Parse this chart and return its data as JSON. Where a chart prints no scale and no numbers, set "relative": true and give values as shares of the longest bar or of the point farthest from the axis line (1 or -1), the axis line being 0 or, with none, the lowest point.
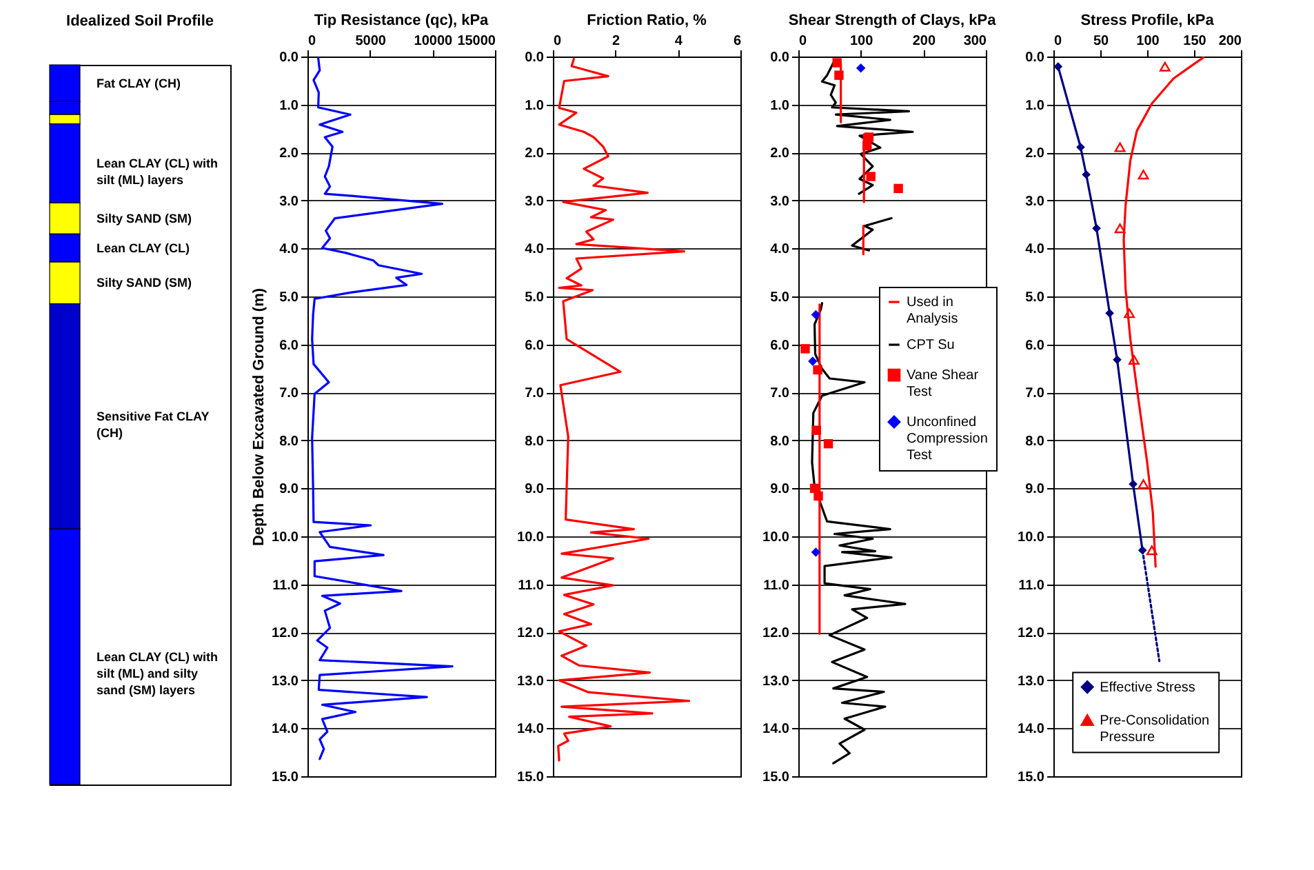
{
  "chart_data": [
    {
      "type": "bar",
      "title": "Idealized Soil Profile",
      "stacked": true,
      "relative": true,
      "categories": [
        null
      ],
      "series": [
        {
          "name": "Fat CLAY (CH)",
          "color": "#0000ff",
          "values": [
            -0.051
          ]
        },
        {
          "color": "#0000ff",
          "values": [
            -0.018
          ]
        },
        {
          "color": "#ffff00",
          "values": [
            -0.013
          ]
        },
        {
          "name": "Lean CLAY (CL) with silt (ML) layers",
          "color": "#0000ff",
          "values": [
            -0.11
          ]
        },
        {
          "name": "Silty SAND (SM)",
          "color": "#ffff00",
          "values": [
            -0.043
          ]
        },
        {
          "name": "Lean CLAY (CL)",
          "color": "#0000ff",
          "values": [
            -0.039
          ]
        },
        {
          "name": "Silty SAND (SM)",
          "color": "#ffff00",
          "values": [
            -0.058
          ]
        },
        {
          "name": "Sensitive Fat CLAY (CH)",
          "color": "#0000cc",
          "values": [
            -0.313
          ]
        },
        {
          "name": "Lean CLAY (CL) with silt (ML) and silty sand (SM) layers",
          "color": "#0000ff",
          "values": [
            -0.355
          ]
        }
      ]
    },
    {
      "type": "line",
      "title": "Tip Resistance (qc), kPa",
      "ylabel": "Depth Below Excavated Ground (m)",
      "xlim": [
        0,
        15000
      ],
      "xticks": [
        0,
        5000,
        10000,
        15000
      ],
      "ylim": [
        15,
        0
      ],
      "yticks": [
        {
          "value": 0,
          "label": "0.0"
        },
        {
          "value": 1,
          "label": "1.0"
        },
        {
          "value": 2,
          "label": "2.0"
        },
        {
          "value": 3,
          "label": "3.0"
        },
        {
          "value": 4,
          "label": "4.0"
        },
        {
          "value": 5,
          "label": "5.0"
        },
        {
          "value": 6,
          "label": "6.0"
        },
        {
          "value": 7,
          "label": "7.0"
        },
        {
          "value": 8,
          "label": "8.0"
        },
        {
          "value": 9,
          "label": "9.0"
        },
        {
          "value": 10,
          "label": "10.0"
        },
        {
          "value": 11,
          "label": "11.0"
        },
        {
          "value": 12,
          "label": "12.0"
        },
        {
          "value": 13,
          "label": "13.0"
        },
        {
          "value": 14,
          "label": "14.0"
        },
        {
          "value": 15,
          "label": "15.0"
        }
      ],
      "grid": "y",
      "series": [
        {
          "color": "#0000ff",
          "x": [
            860,
            980,
            490,
            900,
            860,
            3430,
            980,
            2800,
            1390,
            2000,
            1710,
            1390,
            1800,
            1390,
            3840,
            10780,
            5060,
            2200,
            1470,
            1800,
            1180,
            3020,
            5270,
            5680,
            9140,
            7100,
            7920,
            3430,
            570,
            450,
            370,
            490,
            1710,
            570,
            370,
            450,
            490,
            5060,
            980,
            1800,
            6080,
            570,
            570,
            7510,
            1180,
            2610,
            1390,
            1800,
            780,
            1590,
            980,
            11590,
            980,
            900,
            9550,
            1180,
            3840,
            1180,
            1590,
            980,
            1310,
            980
          ],
          "values": [
            0.03,
            0.29,
            0.49,
            0.75,
            1.06,
            1.21,
            1.42,
            1.57,
            1.68,
            1.88,
            2.29,
            2.5,
            2.71,
            2.86,
            2.91,
            3.07,
            3.27,
            3.37,
            3.63,
            3.79,
            3.99,
            4.09,
            4.25,
            4.35,
            4.53,
            4.61,
            4.76,
            4.92,
            5.05,
            5.38,
            5.89,
            6.41,
            6.79,
            7.03,
            7.95,
            8.98,
            9.7,
            9.77,
            9.91,
            10.22,
            10.39,
            10.52,
            10.83,
            11.14,
            11.24,
            11.4,
            11.55,
            11.91,
            12.17,
            12.32,
            12.58,
            12.71,
            12.89,
            13.2,
            13.35,
            13.51,
            13.66,
            13.81,
            14.07,
            14.23,
            14.43,
            14.64
          ]
        }
      ]
    },
    {
      "type": "line",
      "title": "Friction Ratio, %",
      "xlim": [
        0,
        6
      ],
      "xticks": [
        0,
        2,
        4,
        6
      ],
      "ylim": [
        15,
        0
      ],
      "yticks": [
        {
          "value": 0,
          "label": "0.0"
        },
        {
          "value": 1,
          "label": "1.0"
        },
        {
          "value": 2,
          "label": "2.0"
        },
        {
          "value": 3,
          "label": "3.0"
        },
        {
          "value": 4,
          "label": "4.0"
        },
        {
          "value": 5,
          "label": "5.0"
        },
        {
          "value": 6,
          "label": "6.0"
        },
        {
          "value": 7,
          "label": "7.0"
        },
        {
          "value": 8,
          "label": "8.0"
        },
        {
          "value": 9,
          "label": "9.0"
        },
        {
          "value": 10,
          "label": "10.0"
        },
        {
          "value": 11,
          "label": "11.0"
        },
        {
          "value": 12,
          "label": "12.0"
        },
        {
          "value": 13,
          "label": "13.0"
        },
        {
          "value": 14,
          "label": "14.0"
        },
        {
          "value": 15,
          "label": "15.0"
        }
      ],
      "grid": "y",
      "series": [
        {
          "color": "#ff0000",
          "x": [
            0.67,
            0.6,
            1.77,
            0.36,
            0.2,
            0.75,
            0.2,
            0.99,
            1.3,
            1.61,
            1.77,
            0.99,
            1.61,
            1.3,
            3.03,
            0.33,
            1.69,
            1.22,
            1.93,
            1.07,
            1.3,
            0.75,
            4.2,
            0.75,
            0.91,
            0.44,
            0.91,
            0.2,
            1.27,
            0.33,
            0.44,
            2.16,
            0.24,
            0.49,
            0.41,
            2.59,
            1.22,
            3.06,
            0.28,
            1.93,
            0.28,
            1.93,
            0.36,
            1.3,
            0.36,
            1.22,
            0.2,
            1.07,
            0.28,
            0.83,
            3.1,
            0.2,
            1.14,
            4.36,
            0.28,
            3.18,
            0.52,
            1.85,
            0.36,
            0.49,
            0.17,
            0.2
          ],
          "values": [
            0.05,
            0.2,
            0.41,
            0.51,
            1.07,
            1.17,
            1.42,
            1.57,
            1.68,
            1.88,
            2.08,
            2.34,
            2.54,
            2.69,
            2.84,
            3.03,
            3.2,
            3.35,
            3.4,
            3.65,
            3.81,
            3.91,
            4.06,
            4.21,
            4.42,
            4.62,
            4.77,
            4.82,
            4.87,
            5.1,
            5.89,
            6.57,
            6.85,
            7.92,
            9.65,
            9.85,
            9.92,
            10.05,
            10.36,
            10.46,
            10.86,
            11.02,
            11.22,
            11.42,
            11.62,
            11.83,
            11.98,
            12.28,
            12.49,
            12.69,
            12.84,
            13.0,
            13.25,
            13.43,
            13.55,
            13.69,
            13.76,
            13.96,
            14.11,
            14.26,
            14.37,
            14.67
          ]
        }
      ]
    },
    {
      "type": "line",
      "title": "Shear Strength of Clays, kPa",
      "xlim": [
        0,
        300
      ],
      "xticks": [
        0,
        100,
        200,
        300
      ],
      "ylim": [
        15,
        0
      ],
      "yticks": [
        {
          "value": 0,
          "label": "0.0"
        },
        {
          "value": 1,
          "label": "1.0"
        },
        {
          "value": 2,
          "label": "2.0"
        },
        {
          "value": 3,
          "label": "3.0"
        },
        {
          "value": 4,
          "label": "4.0"
        },
        {
          "value": 5,
          "label": "5.0"
        },
        {
          "value": 6,
          "label": "6.0"
        },
        {
          "value": 7,
          "label": "7.0"
        },
        {
          "value": 8,
          "label": "8.0"
        },
        {
          "value": 9,
          "label": "9.0"
        },
        {
          "value": 10,
          "label": "10.0"
        },
        {
          "value": 11,
          "label": "11.0"
        },
        {
          "value": 12,
          "label": "12.0"
        },
        {
          "value": 13,
          "label": "13.0"
        },
        {
          "value": 14,
          "label": "14.0"
        },
        {
          "value": 15,
          "label": "15.0"
        }
      ],
      "grid": "y",
      "legend": "right",
      "series": [
        {
          "name": "Used in Analysis",
          "color": "#ff0000",
          "x": [
            68,
            68,
            null,
            105,
            105,
            null,
            104,
            104,
            null,
            34,
            34
          ],
          "values": [
            0.13,
            1.37,
            null,
            1.62,
            3.03,
            null,
            3.53,
            4.12,
            null,
            5.17,
            12.03
          ]
        },
        {
          "name": "CPT Su",
          "color": "#000000",
          "x": [
            58,
            46,
            38,
            58,
            52,
            60,
            54,
            177,
            60,
            147,
            62,
            183,
            98,
            131,
            100,
            119,
            98,
            119,
            97,
            null,
            149,
            106,
            119,
            86,
            113,
            null,
            38,
            36,
            26,
            27,
            38,
            50,
            106,
            38,
            24,
            22,
            26,
            46,
            147,
            58,
            119,
            66,
            123,
            70,
            149,
            42,
            42,
            115,
            74,
            171,
            86,
            110,
            50,
            106,
            54,
            110,
            56,
            137,
            70,
            139,
            74,
            106,
            66,
            82,
            56
          ],
          "values": [
            0.08,
            0.39,
            0.52,
            0.6,
            0.8,
            0.96,
            1.06,
            1.14,
            1.21,
            1.32,
            1.45,
            1.57,
            1.65,
            1.9,
            2.03,
            2.29,
            2.55,
            2.68,
            2.86,
            null,
            3.37,
            3.53,
            3.61,
            3.94,
            4.04,
            null,
            5.14,
            5.27,
            5.58,
            6.2,
            6.51,
            6.71,
            6.79,
            7.07,
            7.43,
            8.46,
            8.97,
            9.69,
            9.85,
            9.95,
            10.05,
            10.19,
            10.31,
            10.33,
            10.44,
            10.62,
            10.98,
            11.1,
            11.23,
            11.41,
            11.52,
            11.7,
            12.06,
            12.36,
            12.62,
            12.93,
            13.17,
            13.24,
            13.47,
            13.55,
            13.8,
            14.03,
            14.32,
            14.52,
            14.73
          ]
        },
        {
          "name": "Vane Shear Test",
          "type": "scatter",
          "marker": "square",
          "color": "#ff0000",
          "x": [
            62,
            65,
            113,
            110,
            116,
            160,
            11,
            31,
            29,
            48,
            26,
            32
          ],
          "values": [
            0.13,
            0.39,
            1.68,
            1.86,
            2.5,
            2.75,
            6.09,
            6.53,
            7.79,
            8.07,
            9.0,
            9.16
          ]
        },
        {
          "name": "Unconfined Compression Test",
          "type": "scatter",
          "marker": "diamond",
          "color": "#0000ff",
          "x": [
            100,
            28,
            23,
            28
          ],
          "values": [
            0.24,
            5.38,
            6.35,
            10.33
          ]
        }
      ]
    },
    {
      "type": "line",
      "title": "Stress Profile, kPa",
      "xlim": [
        0,
        200
      ],
      "xticks": [
        0,
        50,
        100,
        150,
        200
      ],
      "ylim": [
        15,
        0
      ],
      "yticks": [
        {
          "value": 0,
          "label": "0.0"
        },
        {
          "value": 1,
          "label": "1.0"
        },
        {
          "value": 2,
          "label": "2.0"
        },
        {
          "value": 3,
          "label": "3.0"
        },
        {
          "value": 4,
          "label": "4.0"
        },
        {
          "value": 5,
          "label": "5.0"
        },
        {
          "value": 6,
          "label": "6.0"
        },
        {
          "value": 7,
          "label": "7.0"
        },
        {
          "value": 8,
          "label": "8.0"
        },
        {
          "value": 9,
          "label": "9.0"
        },
        {
          "value": 10,
          "label": "10.0"
        },
        {
          "value": 11,
          "label": "11.0"
        },
        {
          "value": 12,
          "label": "12.0"
        },
        {
          "value": 13,
          "label": "13.0"
        },
        {
          "value": 14,
          "label": "14.0"
        },
        {
          "value": 15,
          "label": "15.0"
        }
      ],
      "grid": "y",
      "legend": "bottom",
      "series": [
        {
          "color": "#ff0000",
          "x": [
            160,
            146,
            128,
            105,
            89,
            82,
            77,
            75,
            77,
            82,
            89,
            100,
            106,
            109
          ],
          "values": [
            0.02,
            0.21,
            0.46,
            0.98,
            1.55,
            2.17,
            3.1,
            3.82,
            4.85,
            5.88,
            6.91,
            8.46,
            9.49,
            10.63
          ]
        },
        {
          "color": "#000080",
          "line_style": "dotted",
          "x": [
            95,
            113
          ],
          "values": [
            10.29,
            12.6
          ]
        },
        {
          "name": "Effective Stress",
          "marker": "diamond",
          "color": "#000080",
          "x": [
            5,
            29,
            35,
            46,
            60,
            68,
            85,
            95
          ],
          "values": [
            0.21,
            1.89,
            2.46,
            3.58,
            5.35,
            6.32,
            8.91,
            10.29
          ]
        },
        {
          "name": "Pre-Consolidation Pressure",
          "type": "scatter",
          "marker": "triangle",
          "color": "#ff0000",
          "x": [
            119,
            71,
            96,
            71,
            81,
            86,
            96,
            105
          ],
          "values": [
            0.21,
            1.89,
            2.46,
            3.58,
            5.35,
            6.32,
            8.91,
            10.29
          ]
        }
      ]
    }
  ]
}
